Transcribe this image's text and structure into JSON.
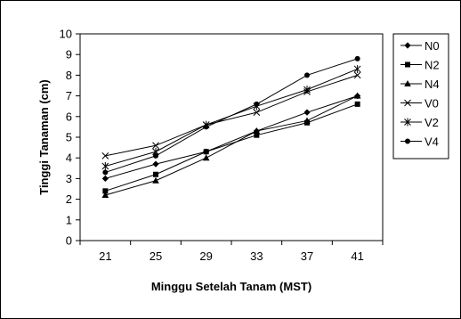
{
  "chart_data": {
    "type": "line",
    "title": "",
    "xlabel": "Minggu Setelah Tanam (MST)",
    "ylabel": "Tinggi Tanaman (cm)",
    "categories": [
      "21",
      "25",
      "29",
      "33",
      "37",
      "41"
    ],
    "ylim": [
      0,
      10
    ],
    "yticks": [
      "0",
      "1",
      "2",
      "3",
      "4",
      "5",
      "6",
      "7",
      "8",
      "9",
      "10"
    ],
    "grid": false,
    "legend_position": "right",
    "series": [
      {
        "name": "N0",
        "marker": "diamond",
        "values": [
          3.0,
          3.7,
          4.3,
          5.3,
          6.2,
          7.0
        ]
      },
      {
        "name": "N2",
        "marker": "square",
        "values": [
          2.4,
          3.2,
          4.3,
          5.1,
          5.7,
          6.6
        ]
      },
      {
        "name": "N4",
        "marker": "triangle",
        "values": [
          2.2,
          2.9,
          4.0,
          5.3,
          5.8,
          7.0
        ]
      },
      {
        "name": "V0",
        "marker": "x",
        "values": [
          4.1,
          4.6,
          5.6,
          6.2,
          7.2,
          8.0
        ]
      },
      {
        "name": "V2",
        "marker": "star",
        "values": [
          3.6,
          4.3,
          5.6,
          6.5,
          7.3,
          8.3
        ]
      },
      {
        "name": "V4",
        "marker": "circle",
        "values": [
          3.3,
          4.1,
          5.5,
          6.6,
          8.0,
          8.8
        ]
      }
    ]
  }
}
